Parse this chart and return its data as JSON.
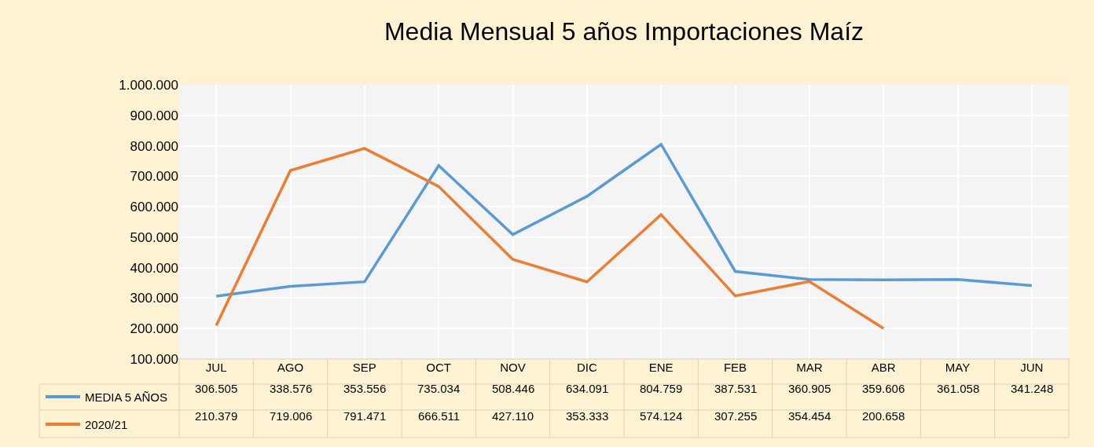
{
  "chart_data": {
    "type": "line",
    "title": "Media Mensual 5 años Importaciones Maíz",
    "categories": [
      "JUL",
      "AGO",
      "SEP",
      "OCT",
      "NOV",
      "DIC",
      "ENE",
      "FEB",
      "MAR",
      "ABR",
      "MAY",
      "JUN"
    ],
    "series": [
      {
        "name": "MEDIA 5 AÑOS",
        "color": "#5b9bd5",
        "values": [
          306505,
          338576,
          353556,
          735034,
          508446,
          634091,
          804759,
          387531,
          360905,
          359606,
          361058,
          341248
        ],
        "value_labels": [
          "306.505",
          "338.576",
          "353.556",
          "735.034",
          "508.446",
          "634.091",
          "804.759",
          "387.531",
          "360.905",
          "359.606",
          "361.058",
          "341.248"
        ]
      },
      {
        "name": "2020/21",
        "color": "#ed7d31",
        "values": [
          210379,
          719006,
          791471,
          666511,
          427110,
          353333,
          574124,
          307255,
          354454,
          200658,
          null,
          null
        ],
        "value_labels": [
          "210.379",
          "719.006",
          "791.471",
          "666.511",
          "427.110",
          "353.333",
          "574.124",
          "307.255",
          "354.454",
          "200.658",
          null,
          null
        ]
      }
    ],
    "ylim": [
      100000,
      1000000
    ],
    "yticks": [
      {
        "value": 100000,
        "label": "100.000"
      },
      {
        "value": 200000,
        "label": "200.000"
      },
      {
        "value": 300000,
        "label": "300.000"
      },
      {
        "value": 400000,
        "label": "400.000"
      },
      {
        "value": 500000,
        "label": "500.000"
      },
      {
        "value": 600000,
        "label": "600.000"
      },
      {
        "value": 700000,
        "label": "700.000"
      },
      {
        "value": 800000,
        "label": "800.000"
      },
      {
        "value": 900000,
        "label": "900.000"
      },
      {
        "value": 1000000,
        "label": "1.000.000"
      }
    ],
    "grid": true,
    "legend": "bottom",
    "marker": "none",
    "line_style": "solid"
  }
}
